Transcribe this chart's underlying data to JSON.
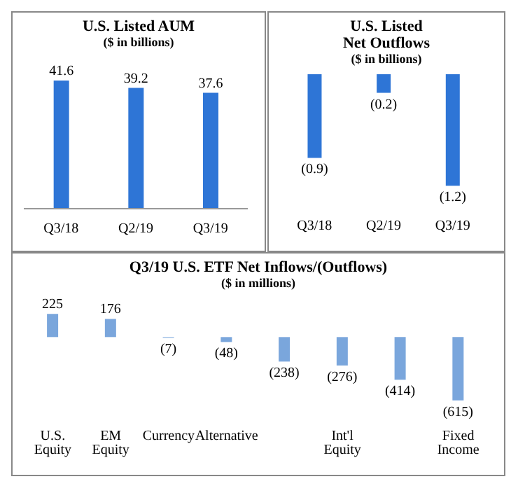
{
  "chart_data": [
    {
      "type": "bar",
      "title": "U.S. Listed AUM",
      "subtitle": "($ in billions)",
      "categories": [
        "Q3/18",
        "Q2/19",
        "Q3/19"
      ],
      "values": [
        41.6,
        39.2,
        37.6
      ],
      "color": "#2e75d6",
      "data_labels": true
    },
    {
      "type": "bar",
      "title": "U.S. Listed\nNet Outflows",
      "subtitle": "($ in billions)",
      "categories": [
        "Q3/18",
        "Q2/19",
        "Q3/19"
      ],
      "values": [
        -0.9,
        -0.2,
        -1.2
      ],
      "color": "#2e75d6",
      "value_labels": [
        "(0.9)",
        "(0.2)",
        "(1.2)"
      ]
    },
    {
      "type": "bar",
      "title": "Q3/19 U.S. ETF Net Inflows/(Outflows)",
      "subtitle": "($ in millions)",
      "categories": [
        "U.S. Equity",
        "EM Equity",
        "Currency",
        "Alternative",
        null,
        "Int'l Equity",
        null,
        "Fixed Income"
      ],
      "values": [
        225,
        176,
        -7,
        -48,
        -238,
        -276,
        -414,
        -615
      ],
      "color": "#7aa6dc",
      "value_labels": [
        "225",
        "176",
        "(7)",
        "(48)",
        "(238)",
        "(276)",
        "(414)",
        "(615)"
      ]
    }
  ]
}
